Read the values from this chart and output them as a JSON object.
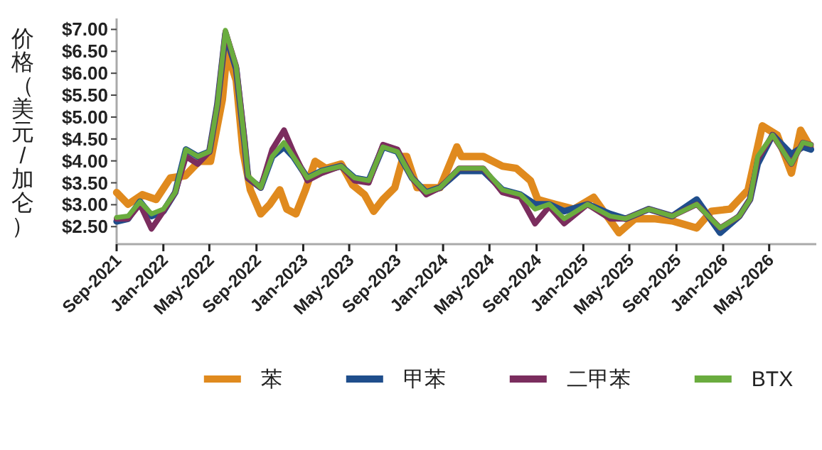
{
  "chart_data": {
    "type": "line",
    "ylabel": "价格（美元/加仑）",
    "xlim": [
      "2021-09-01",
      "2026-09-01"
    ],
    "ylim": [
      2.1,
      7.25
    ],
    "xticks": [
      {
        "value": "2021-09-01",
        "label": "Sep-2021"
      },
      {
        "value": "2022-01-01",
        "label": "Jan-2022"
      },
      {
        "value": "2022-05-01",
        "label": "May-2022"
      },
      {
        "value": "2022-09-01",
        "label": "Sep-2022"
      },
      {
        "value": "2023-01-01",
        "label": "Jan-2023"
      },
      {
        "value": "2023-05-01",
        "label": "May-2023"
      },
      {
        "value": "2023-09-01",
        "label": "Sep-2023"
      },
      {
        "value": "2024-01-01",
        "label": "Jan-2024"
      },
      {
        "value": "2024-05-01",
        "label": "May-2024"
      },
      {
        "value": "2024-09-01",
        "label": "Sep-2024"
      },
      {
        "value": "2025-01-01",
        "label": "Jan-2025"
      },
      {
        "value": "2025-05-01",
        "label": "May-2025"
      },
      {
        "value": "2025-09-01",
        "label": "Sep-2025"
      },
      {
        "value": "2026-01-01",
        "label": "Jan-2026"
      },
      {
        "value": "2026-05-01",
        "label": "May-2026"
      }
    ],
    "yticks": [
      {
        "value": 2.5,
        "label": "$2.50"
      },
      {
        "value": 3.0,
        "label": "$3.00"
      },
      {
        "value": 3.5,
        "label": "$3.50"
      },
      {
        "value": 4.0,
        "label": "$4.00"
      },
      {
        "value": 4.5,
        "label": "$4.50"
      },
      {
        "value": 5.0,
        "label": "$5.00"
      },
      {
        "value": 5.5,
        "label": "$5.50"
      },
      {
        "value": 6.0,
        "label": "$6.00"
      },
      {
        "value": 6.5,
        "label": "$6.50"
      },
      {
        "value": 7.0,
        "label": "$7.00"
      }
    ],
    "grid": false,
    "legend": "bottom",
    "series": [
      {
        "name": "苯",
        "color": "#e08a1e",
        "x": [
          "2021-09-01",
          "2021-10-01",
          "2021-11-07",
          "2021-12-13",
          "2022-01-19",
          "2022-02-27",
          "2022-04-04",
          "2022-05-04",
          "2022-06-04",
          "2022-06-16",
          "2022-07-10",
          "2022-07-28",
          "2022-08-16",
          "2022-09-12",
          "2022-10-06",
          "2022-11-01",
          "2022-11-19",
          "2022-12-13",
          "2023-01-07",
          "2023-02-01",
          "2023-03-01",
          "2023-04-10",
          "2023-05-10",
          "2023-06-10",
          "2023-07-04",
          "2023-07-28",
          "2023-08-28",
          "2023-09-19",
          "2023-09-28",
          "2023-10-25",
          "2023-12-24",
          "2024-02-06",
          "2024-02-18",
          "2024-04-15",
          "2024-06-04",
          "2024-07-10",
          "2024-08-16",
          "2024-09-04",
          "2024-10-19",
          "2024-12-07",
          "2025-01-28",
          "2025-04-04",
          "2025-05-16",
          "2025-07-04",
          "2025-08-21",
          "2025-10-24",
          "2025-12-01",
          "2026-01-19",
          "2026-03-07",
          "2026-04-13",
          "2026-05-22",
          "2026-06-28",
          "2026-07-22",
          "2026-08-16"
        ],
        "values": [
          3.28,
          3.01,
          3.23,
          3.12,
          3.61,
          3.66,
          3.99,
          3.99,
          5.4,
          6.49,
          5.84,
          4.21,
          3.34,
          2.79,
          3.01,
          3.34,
          2.9,
          2.79,
          3.34,
          3.99,
          3.83,
          3.93,
          3.45,
          3.23,
          2.85,
          3.12,
          3.39,
          4.1,
          4.1,
          3.39,
          3.39,
          4.32,
          4.1,
          4.1,
          3.88,
          3.83,
          3.55,
          3.12,
          3.01,
          2.9,
          3.17,
          2.36,
          2.68,
          2.68,
          2.63,
          2.47,
          2.85,
          2.9,
          3.34,
          4.8,
          4.59,
          3.72,
          4.7,
          4.32
        ]
      },
      {
        "name": "甲苯",
        "color": "#1f4e8c",
        "x": [
          "2021-09-01",
          "2021-10-01",
          "2021-11-01",
          "2021-12-01",
          "2022-01-01",
          "2022-02-01",
          "2022-03-01",
          "2022-04-01",
          "2022-05-01",
          "2022-05-22",
          "2022-06-12",
          "2022-07-10",
          "2022-08-01",
          "2022-08-10",
          "2022-09-12",
          "2022-10-12",
          "2022-11-12",
          "2022-12-06",
          "2023-01-12",
          "2023-02-18",
          "2023-04-10",
          "2023-05-15",
          "2023-06-21",
          "2023-07-28",
          "2023-09-04",
          "2023-10-12",
          "2023-11-18",
          "2023-12-24",
          "2024-02-12",
          "2024-04-15",
          "2024-06-04",
          "2024-07-21",
          "2024-08-28",
          "2024-10-04",
          "2024-11-12",
          "2025-01-12",
          "2025-03-12",
          "2025-04-21",
          "2025-06-21",
          "2025-08-21",
          "2025-10-24",
          "2025-12-24",
          "2026-02-12",
          "2026-03-12",
          "2026-04-01",
          "2026-05-10",
          "2026-06-28",
          "2026-07-28",
          "2026-08-18"
        ],
        "values": [
          2.62,
          2.68,
          3.07,
          2.74,
          2.85,
          3.28,
          4.26,
          4.1,
          4.21,
          5.29,
          6.9,
          6.1,
          4.42,
          3.61,
          3.39,
          4.1,
          4.32,
          4.1,
          3.61,
          3.77,
          3.88,
          3.61,
          3.55,
          4.32,
          4.21,
          3.61,
          3.28,
          3.39,
          3.77,
          3.77,
          3.34,
          3.23,
          3.01,
          3.01,
          2.85,
          3.01,
          2.79,
          2.68,
          2.9,
          2.74,
          3.12,
          2.36,
          2.74,
          3.12,
          3.93,
          4.59,
          4.15,
          4.32,
          4.26
        ]
      },
      {
        "name": "二甲苯",
        "color": "#7b2d5e",
        "x": [
          "2021-09-01",
          "2021-10-01",
          "2021-11-01",
          "2021-12-01",
          "2022-01-01",
          "2022-02-01",
          "2022-03-01",
          "2022-04-01",
          "2022-05-01",
          "2022-05-22",
          "2022-06-12",
          "2022-07-10",
          "2022-08-01",
          "2022-08-10",
          "2022-09-12",
          "2022-10-12",
          "2022-11-12",
          "2022-12-06",
          "2023-01-12",
          "2023-02-18",
          "2023-04-10",
          "2023-05-15",
          "2023-06-21",
          "2023-07-28",
          "2023-09-04",
          "2023-10-12",
          "2023-11-18",
          "2023-12-24",
          "2024-02-12",
          "2024-04-15",
          "2024-06-04",
          "2024-07-21",
          "2024-08-28",
          "2024-10-04",
          "2024-11-12",
          "2025-01-12",
          "2025-03-12",
          "2025-04-21",
          "2025-06-21",
          "2025-08-21",
          "2025-10-24",
          "2025-12-24",
          "2026-02-12",
          "2026-03-12",
          "2026-04-01",
          "2026-05-10",
          "2026-06-28",
          "2026-07-28",
          "2026-08-18"
        ],
        "values": [
          2.68,
          2.68,
          3.01,
          2.45,
          2.85,
          3.28,
          4.1,
          3.93,
          4.21,
          5.29,
          6.95,
          6.16,
          4.48,
          3.61,
          3.39,
          4.26,
          4.7,
          4.21,
          3.55,
          3.72,
          3.88,
          3.55,
          3.5,
          4.37,
          4.26,
          3.61,
          3.23,
          3.39,
          3.83,
          3.83,
          3.28,
          3.17,
          2.57,
          2.96,
          2.57,
          3.01,
          2.68,
          2.68,
          2.9,
          2.74,
          3.01,
          2.47,
          2.74,
          3.12,
          4.04,
          4.59,
          3.93,
          4.42,
          4.37
        ]
      },
      {
        "name": "BTX",
        "color": "#6aac3e",
        "x": [
          "2021-09-01",
          "2021-10-01",
          "2021-11-01",
          "2021-12-01",
          "2022-01-01",
          "2022-02-01",
          "2022-03-01",
          "2022-04-01",
          "2022-05-01",
          "2022-05-22",
          "2022-06-12",
          "2022-07-10",
          "2022-08-01",
          "2022-08-10",
          "2022-09-12",
          "2022-10-12",
          "2022-11-12",
          "2022-12-06",
          "2023-01-12",
          "2023-02-18",
          "2023-04-10",
          "2023-05-15",
          "2023-06-21",
          "2023-07-28",
          "2023-09-04",
          "2023-10-12",
          "2023-11-18",
          "2023-12-24",
          "2024-02-12",
          "2024-04-15",
          "2024-06-04",
          "2024-07-21",
          "2024-08-28",
          "2024-10-04",
          "2024-11-12",
          "2025-01-12",
          "2025-03-12",
          "2025-04-21",
          "2025-06-21",
          "2025-08-21",
          "2025-10-24",
          "2025-12-24",
          "2026-02-12",
          "2026-03-12",
          "2026-04-01",
          "2026-05-10",
          "2026-06-28",
          "2026-07-28",
          "2026-08-18"
        ],
        "values": [
          2.71,
          2.74,
          3.07,
          2.79,
          2.9,
          3.28,
          4.26,
          4.1,
          4.21,
          5.29,
          6.98,
          6.16,
          4.42,
          3.66,
          3.39,
          4.1,
          4.42,
          4.1,
          3.61,
          3.77,
          3.88,
          3.61,
          3.55,
          4.32,
          4.21,
          3.61,
          3.28,
          3.39,
          3.83,
          3.83,
          3.34,
          3.23,
          2.9,
          3.01,
          2.68,
          3.01,
          2.74,
          2.68,
          2.9,
          2.74,
          3.01,
          2.47,
          2.74,
          3.12,
          4.1,
          4.59,
          3.93,
          4.42,
          4.37
        ]
      }
    ]
  }
}
